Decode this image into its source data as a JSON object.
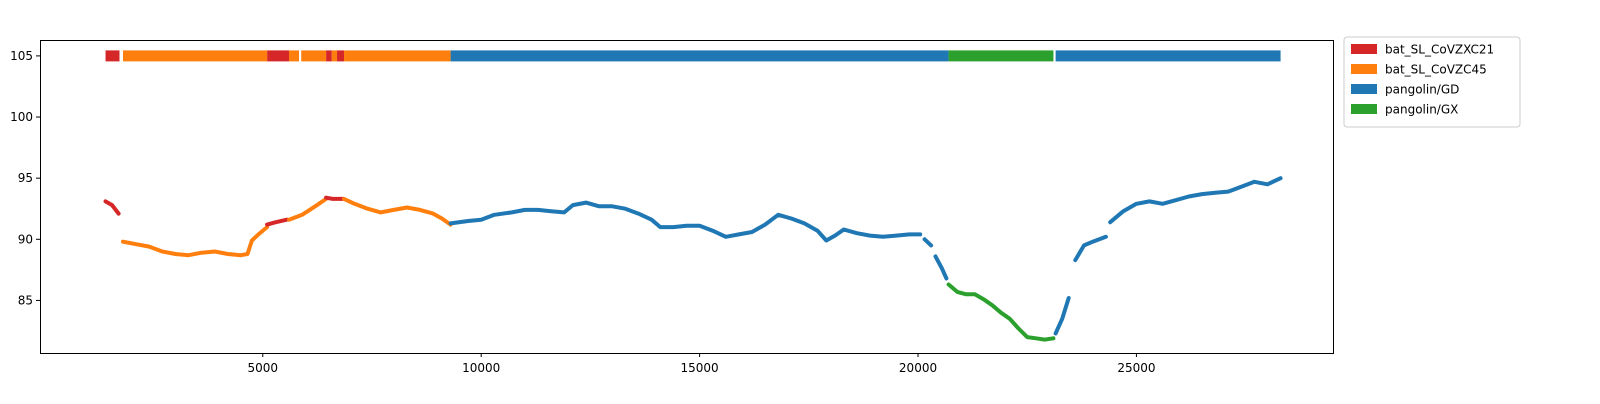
{
  "chart_data": {
    "type": "scatter",
    "title": "",
    "xlabel": "",
    "ylabel": "",
    "xlim": [
      -100,
      29500
    ],
    "ylim": [
      80.7,
      106.3
    ],
    "xticks": [
      5000,
      10000,
      15000,
      20000,
      25000
    ],
    "xtick_labels": [
      "5000",
      "10000",
      "15000",
      "20000",
      "25000"
    ],
    "yticks": [
      85,
      90,
      95,
      100,
      105
    ],
    "ytick_labels": [
      "85",
      "90",
      "95",
      "100",
      "105"
    ],
    "grid": false,
    "legend_position": "outside-top-right",
    "legend": [
      {
        "name": "bat_SL_CoVZXC21",
        "color": "#d62728"
      },
      {
        "name": "bat_SL_CoVZC45",
        "color": "#ff7f0e"
      },
      {
        "name": "pangolin/GD",
        "color": "#1f77b4"
      },
      {
        "name": "pangolin/GX",
        "color": "#2ca02c"
      }
    ],
    "strip": {
      "y": 105,
      "segments": [
        {
          "x0": 1400,
          "x1": 1720,
          "series": "bat_SL_CoVZXC21"
        },
        {
          "x0": 1800,
          "x1": 5100,
          "series": "bat_SL_CoVZC45"
        },
        {
          "x0": 5100,
          "x1": 5600,
          "series": "bat_SL_CoVZXC21"
        },
        {
          "x0": 5600,
          "x1": 5830,
          "series": "bat_SL_CoVZC45"
        },
        {
          "x0": 5880,
          "x1": 6450,
          "series": "bat_SL_CoVZC45"
        },
        {
          "x0": 6450,
          "x1": 6580,
          "series": "bat_SL_CoVZXC21"
        },
        {
          "x0": 6580,
          "x1": 6700,
          "series": "bat_SL_CoVZC45"
        },
        {
          "x0": 6700,
          "x1": 6860,
          "series": "bat_SL_CoVZXC21"
        },
        {
          "x0": 6860,
          "x1": 9300,
          "series": "bat_SL_CoVZC45"
        },
        {
          "x0": 9300,
          "x1": 20700,
          "series": "pangolin/GD"
        },
        {
          "x0": 20700,
          "x1": 23100,
          "series": "pangolin/GX"
        },
        {
          "x0": 23150,
          "x1": 28300,
          "series": "pangolin/GD"
        }
      ]
    },
    "segments": [
      {
        "series": "bat_SL_CoVZXC21",
        "points": [
          [
            1400,
            93.1
          ],
          [
            1550,
            92.8
          ],
          [
            1700,
            92.1
          ]
        ]
      },
      {
        "series": "bat_SL_CoVZC45",
        "points": [
          [
            1800,
            89.8
          ],
          [
            2100,
            89.6
          ],
          [
            2400,
            89.4
          ],
          [
            2700,
            89.0
          ],
          [
            3000,
            88.8
          ],
          [
            3300,
            88.7
          ],
          [
            3600,
            88.9
          ],
          [
            3900,
            89.0
          ],
          [
            4200,
            88.8
          ],
          [
            4500,
            88.7
          ],
          [
            4650,
            88.8
          ],
          [
            4750,
            89.9
          ],
          [
            4900,
            90.4
          ],
          [
            5100,
            91.0
          ]
        ]
      },
      {
        "series": "bat_SL_CoVZXC21",
        "points": [
          [
            5100,
            91.2
          ],
          [
            5300,
            91.4
          ],
          [
            5550,
            91.6
          ]
        ]
      },
      {
        "series": "bat_SL_CoVZC45",
        "points": [
          [
            5600,
            91.6
          ],
          [
            5900,
            92.0
          ],
          [
            6200,
            92.7
          ],
          [
            6450,
            93.3
          ]
        ]
      },
      {
        "series": "bat_SL_CoVZXC21",
        "points": [
          [
            6450,
            93.4
          ],
          [
            6600,
            93.3
          ],
          [
            6850,
            93.3
          ]
        ]
      },
      {
        "series": "bat_SL_CoVZC45",
        "points": [
          [
            6860,
            93.3
          ],
          [
            7100,
            92.9
          ],
          [
            7400,
            92.5
          ],
          [
            7700,
            92.2
          ],
          [
            8000,
            92.4
          ],
          [
            8300,
            92.6
          ],
          [
            8600,
            92.4
          ],
          [
            8900,
            92.1
          ],
          [
            9100,
            91.7
          ],
          [
            9300,
            91.2
          ]
        ]
      },
      {
        "series": "pangolin/GD",
        "points": [
          [
            9300,
            91.3
          ],
          [
            9700,
            91.5
          ],
          [
            10000,
            91.6
          ],
          [
            10300,
            92.0
          ],
          [
            10700,
            92.2
          ],
          [
            11000,
            92.4
          ],
          [
            11300,
            92.4
          ],
          [
            11600,
            92.3
          ],
          [
            11900,
            92.2
          ],
          [
            12100,
            92.8
          ],
          [
            12400,
            93.0
          ],
          [
            12700,
            92.7
          ],
          [
            13000,
            92.7
          ],
          [
            13300,
            92.5
          ],
          [
            13600,
            92.1
          ],
          [
            13900,
            91.6
          ],
          [
            14100,
            91.0
          ],
          [
            14400,
            91.0
          ],
          [
            14700,
            91.1
          ],
          [
            15000,
            91.1
          ],
          [
            15300,
            90.7
          ],
          [
            15600,
            90.2
          ],
          [
            15900,
            90.4
          ],
          [
            16200,
            90.6
          ],
          [
            16500,
            91.2
          ],
          [
            16800,
            92.0
          ],
          [
            17100,
            91.7
          ],
          [
            17400,
            91.3
          ],
          [
            17700,
            90.7
          ],
          [
            17900,
            89.9
          ],
          [
            18100,
            90.3
          ],
          [
            18300,
            90.8
          ],
          [
            18600,
            90.5
          ],
          [
            18900,
            90.3
          ],
          [
            19200,
            90.2
          ],
          [
            19500,
            90.3
          ],
          [
            19800,
            90.4
          ],
          [
            20050,
            90.4
          ]
        ]
      },
      {
        "series": "pangolin/GD",
        "points": [
          [
            20150,
            90.0
          ],
          [
            20300,
            89.5
          ]
        ]
      },
      {
        "series": "pangolin/GD",
        "points": [
          [
            20400,
            88.6
          ],
          [
            20550,
            87.6
          ],
          [
            20650,
            86.8
          ]
        ]
      },
      {
        "series": "pangolin/GX",
        "points": [
          [
            20700,
            86.3
          ],
          [
            20900,
            85.7
          ],
          [
            21100,
            85.5
          ],
          [
            21300,
            85.5
          ],
          [
            21500,
            85.1
          ],
          [
            21700,
            84.6
          ],
          [
            21900,
            84.0
          ],
          [
            22100,
            83.5
          ],
          [
            22300,
            82.7
          ],
          [
            22500,
            82.0
          ],
          [
            22700,
            81.9
          ],
          [
            22900,
            81.8
          ],
          [
            23100,
            81.9
          ]
        ]
      },
      {
        "series": "pangolin/GD",
        "points": [
          [
            23150,
            82.3
          ],
          [
            23300,
            83.5
          ],
          [
            23450,
            85.2
          ]
        ]
      },
      {
        "series": "pangolin/GD",
        "points": [
          [
            23600,
            88.3
          ],
          [
            23800,
            89.5
          ],
          [
            24000,
            89.8
          ],
          [
            24300,
            90.2
          ]
        ]
      },
      {
        "series": "pangolin/GD",
        "points": [
          [
            24400,
            91.4
          ],
          [
            24700,
            92.3
          ],
          [
            25000,
            92.9
          ],
          [
            25300,
            93.1
          ],
          [
            25600,
            92.9
          ],
          [
            25900,
            93.2
          ],
          [
            26200,
            93.5
          ],
          [
            26500,
            93.7
          ],
          [
            26800,
            93.8
          ],
          [
            27100,
            93.9
          ],
          [
            27400,
            94.3
          ],
          [
            27700,
            94.7
          ],
          [
            28000,
            94.5
          ],
          [
            28300,
            95.0
          ]
        ]
      }
    ]
  }
}
